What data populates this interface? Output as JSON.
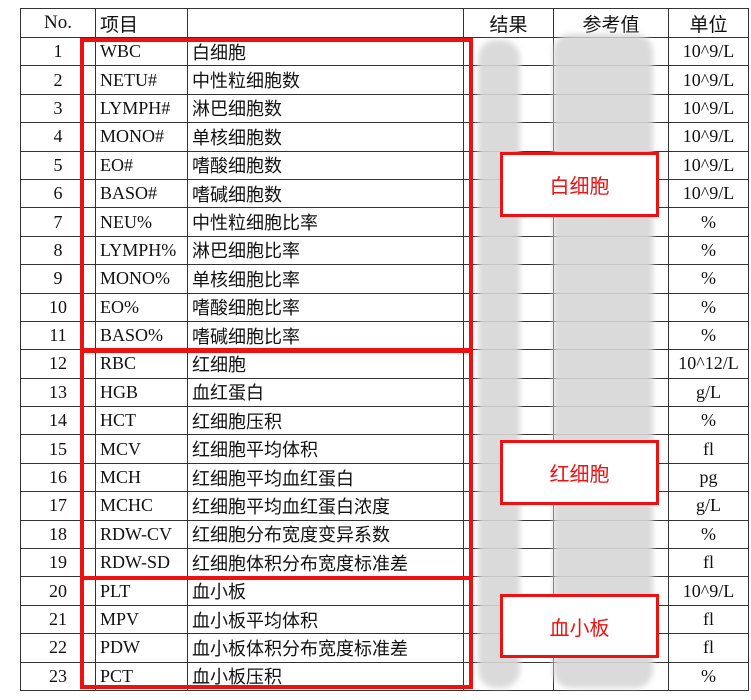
{
  "header": {
    "no": "No.",
    "item": "项目",
    "result": "结果",
    "reference": "参考值",
    "unit": "单位"
  },
  "rows": [
    {
      "no": "1",
      "code": "WBC",
      "name": "白细胞",
      "unit": "10^9/L"
    },
    {
      "no": "2",
      "code": "NETU#",
      "name": "中性粒细胞数",
      "unit": "10^9/L"
    },
    {
      "no": "3",
      "code": "LYMPH#",
      "name": "淋巴细胞数",
      "unit": "10^9/L"
    },
    {
      "no": "4",
      "code": "MONO#",
      "name": "单核细胞数",
      "unit": "10^9/L"
    },
    {
      "no": "5",
      "code": "EO#",
      "name": "嗜酸细胞数",
      "unit": "10^9/L"
    },
    {
      "no": "6",
      "code": "BASO#",
      "name": "嗜碱细胞数",
      "unit": "10^9/L"
    },
    {
      "no": "7",
      "code": "NEU%",
      "name": "中性粒细胞比率",
      "unit": "%"
    },
    {
      "no": "8",
      "code": "LYMPH%",
      "name": "淋巴细胞比率",
      "unit": "%"
    },
    {
      "no": "9",
      "code": "MONO%",
      "name": "单核细胞比率",
      "unit": "%"
    },
    {
      "no": "10",
      "code": "EO%",
      "name": "嗜酸细胞比率",
      "unit": "%"
    },
    {
      "no": "11",
      "code": "BASO%",
      "name": "嗜碱细胞比率",
      "unit": "%"
    },
    {
      "no": "12",
      "code": "RBC",
      "name": "红细胞",
      "unit": "10^12/L"
    },
    {
      "no": "13",
      "code": "HGB",
      "name": "血红蛋白",
      "unit": "g/L"
    },
    {
      "no": "14",
      "code": "HCT",
      "name": "红细胞压积",
      "unit": "%"
    },
    {
      "no": "15",
      "code": "MCV",
      "name": "红细胞平均体积",
      "unit": "fl"
    },
    {
      "no": "16",
      "code": "MCH",
      "name": "红细胞平均血红蛋白",
      "unit": "pg"
    },
    {
      "no": "17",
      "code": "MCHC",
      "name": "红细胞平均血红蛋白浓度",
      "unit": "g/L"
    },
    {
      "no": "18",
      "code": "RDW-CV",
      "name": "红细胞分布宽度变异系数",
      "unit": "%"
    },
    {
      "no": "19",
      "code": "RDW-SD",
      "name": "红细胞体积分布宽度标准差",
      "unit": "fl"
    },
    {
      "no": "20",
      "code": "PLT",
      "name": "血小板",
      "unit": "10^9/L"
    },
    {
      "no": "21",
      "code": "MPV",
      "name": "血小板平均体积",
      "unit": "fl"
    },
    {
      "no": "22",
      "code": "PDW",
      "name": "血小板体积分布宽度标准差",
      "unit": "fl"
    },
    {
      "no": "23",
      "code": "PCT",
      "name": "血小板压积",
      "unit": "%"
    }
  ],
  "annotations": {
    "wbc": "白细胞",
    "rbc": "红细胞",
    "plt": "血小板",
    "color": "#ee1111"
  }
}
